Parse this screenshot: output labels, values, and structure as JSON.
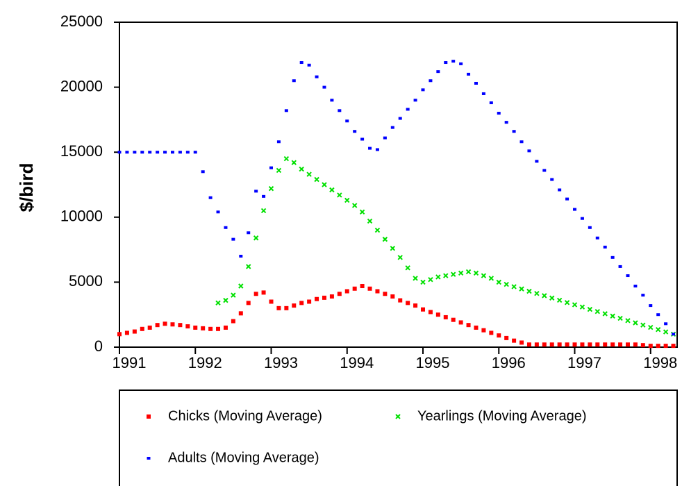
{
  "chart_data": {
    "type": "scatter",
    "ylabel": "$/bird",
    "x": [
      1991.0,
      1991.1,
      1991.2,
      1991.3,
      1991.4,
      1991.5,
      1991.6,
      1991.7,
      1991.8,
      1991.9,
      1992.0,
      1992.1,
      1992.2,
      1992.3,
      1992.4,
      1992.5,
      1992.6,
      1992.7,
      1992.8,
      1992.9,
      1993.0,
      1993.1,
      1993.2,
      1993.3,
      1993.4,
      1993.5,
      1993.6,
      1993.7,
      1993.8,
      1993.9,
      1994.0,
      1994.1,
      1994.2,
      1994.3,
      1994.4,
      1994.5,
      1994.6,
      1994.7,
      1994.8,
      1994.9,
      1995.0,
      1995.1,
      1995.2,
      1995.3,
      1995.4,
      1995.5,
      1995.6,
      1995.7,
      1995.8,
      1995.9,
      1996.0,
      1996.1,
      1996.2,
      1996.3,
      1996.4,
      1996.5,
      1996.6,
      1996.7,
      1996.8,
      1996.9,
      1997.0,
      1997.1,
      1997.2,
      1997.3,
      1997.4,
      1997.5,
      1997.6,
      1997.7,
      1997.8,
      1997.9,
      1998.0,
      1998.1,
      1998.2,
      1998.3
    ],
    "series": [
      {
        "name": "Chicks (Moving Average)",
        "color": "#ff0000",
        "marker": "square",
        "values": [
          1000,
          1100,
          1200,
          1400,
          1500,
          1700,
          1800,
          1750,
          1700,
          1600,
          1500,
          1450,
          1400,
          1400,
          1500,
          2000,
          2600,
          3400,
          4100,
          4200,
          3500,
          3000,
          3000,
          3200,
          3400,
          3500,
          3700,
          3800,
          3900,
          4100,
          4300,
          4500,
          4700,
          4500,
          4300,
          4100,
          3900,
          3600,
          3400,
          3200,
          2900,
          2700,
          2500,
          2300,
          2100,
          1900,
          1700,
          1500,
          1300,
          1100,
          900,
          700,
          500,
          350,
          200,
          200,
          200,
          200,
          200,
          200,
          200,
          200,
          200,
          200,
          200,
          200,
          200,
          200,
          200,
          150,
          100,
          100,
          100,
          100
        ]
      },
      {
        "name": "Yearlings (Moving Average)",
        "color": "#00e000",
        "marker": "x",
        "values": [
          null,
          null,
          null,
          null,
          null,
          null,
          null,
          null,
          null,
          null,
          null,
          null,
          null,
          3400,
          3600,
          4000,
          4700,
          6200,
          8400,
          10500,
          12200,
          13600,
          14500,
          14200,
          13700,
          13300,
          12900,
          12500,
          12100,
          11700,
          11300,
          10900,
          10400,
          9700,
          9000,
          8300,
          7600,
          6900,
          6100,
          5300,
          5000,
          5200,
          5400,
          5500,
          5600,
          5700,
          5800,
          5700,
          5500,
          5300,
          5000,
          4830,
          4650,
          4480,
          4300,
          4130,
          3960,
          3780,
          3610,
          3430,
          3260,
          3090,
          2910,
          2740,
          2570,
          2390,
          2220,
          2040,
          1870,
          1700,
          1520,
          1350,
          1170,
          1000
        ]
      },
      {
        "name": "Adults (Moving Average)",
        "color": "#0000ff",
        "marker": "dash",
        "values": [
          15000,
          15000,
          15000,
          15000,
          15000,
          15000,
          15000,
          15000,
          15000,
          15000,
          15000,
          13500,
          11500,
          10400,
          9200,
          8300,
          7000,
          8800,
          12000,
          11600,
          13800,
          15800,
          18200,
          20500,
          21900,
          21700,
          20800,
          20000,
          19000,
          18200,
          17400,
          16600,
          16000,
          15300,
          15200,
          16100,
          16900,
          17600,
          18300,
          19000,
          19800,
          20500,
          21200,
          21900,
          22000,
          21800,
          21000,
          20300,
          19500,
          18800,
          18000,
          17300,
          16600,
          15800,
          15100,
          14300,
          13600,
          12900,
          12100,
          11400,
          10600,
          9900,
          9200,
          8400,
          7700,
          6900,
          6200,
          5500,
          4700,
          4000,
          3200,
          2500,
          1800,
          1000
        ]
      }
    ],
    "xlim": [
      1991,
      1998.35
    ],
    "xticks": [
      1991,
      1992,
      1993,
      1994,
      1995,
      1996,
      1997,
      1998
    ],
    "ylim": [
      0,
      25000
    ],
    "yticks": [
      0,
      5000,
      10000,
      15000,
      20000,
      25000
    ],
    "grid": false,
    "legend": "bottom"
  }
}
